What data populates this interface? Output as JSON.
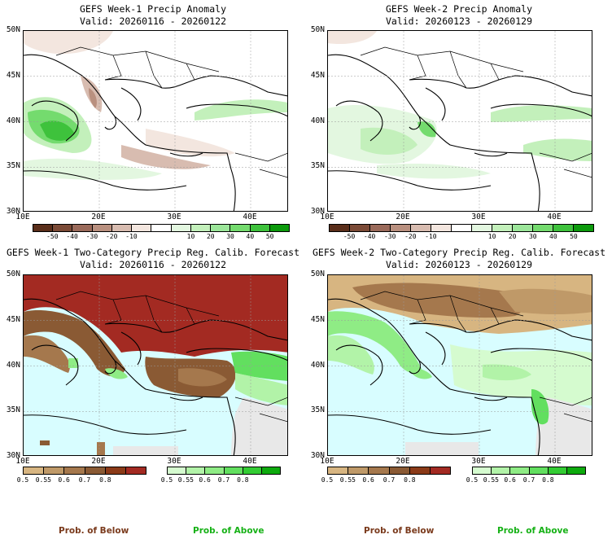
{
  "panels": [
    {
      "title": "GEFS Week-1 Precip Anomaly",
      "valid": "Valid: 20260116 - 20260122"
    },
    {
      "title": "GEFS Week-2 Precip Anomaly",
      "valid": "Valid: 20260123 - 20260129"
    },
    {
      "title": "GEFS Week-1 Two-Category Precip Reg. Calib. Forecast",
      "valid": "Valid: 20260116 - 20260122"
    },
    {
      "title": "GEFS Week-2 Two-Category Precip Reg. Calib. Forecast",
      "valid": "Valid: 20260123 - 20260129"
    }
  ],
  "axes": {
    "lat_labels": [
      "50N",
      "45N",
      "40N",
      "35N",
      "30N"
    ],
    "lon_labels": [
      "10E",
      "20E",
      "30E",
      "40E"
    ]
  },
  "anomaly_bar": {
    "ticks": [
      "-50",
      "-40",
      "-30",
      "-20",
      "-10",
      "10",
      "20",
      "30",
      "40",
      "50"
    ],
    "colors": [
      "#5a2e1a",
      "#7b4a36",
      "#9a6a5a",
      "#b9907f",
      "#d8bcb0",
      "#f3e6df",
      "#ffffff",
      "#e3f7e0",
      "#c3f0bb",
      "#9ce69a",
      "#74db6e",
      "#3ec23c",
      "#0c9a0c"
    ]
  },
  "prob_below_bar": {
    "ticks": [
      "0.5",
      "0.55",
      "0.6",
      "0.7",
      "0.8"
    ],
    "colors": [
      "#d7b581",
      "#bf9968",
      "#a5784d",
      "#8a5a34",
      "#8b3a18",
      "#a32a22"
    ]
  },
  "prob_above_bar": {
    "ticks": [
      "0.5",
      "0.55",
      "0.6",
      "0.7",
      "0.8"
    ],
    "colors": [
      "#d5fbcf",
      "#b2f3a8",
      "#8fec85",
      "#62df5f",
      "#33cc33",
      "#0daa0d"
    ]
  },
  "footer": {
    "below_left": "Prob. of Below",
    "above_left": "Prob. of Above",
    "below_right": "Prob. of Below",
    "above_right": "Prob. of Above"
  },
  "colors": {
    "below_text": "#7a3a1c",
    "above_text": "#16b116",
    "sea": "#d8fdff"
  }
}
